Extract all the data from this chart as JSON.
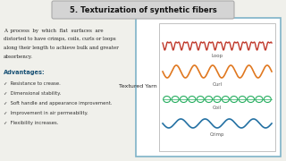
{
  "title": "5. Texturization of synthetic fibers",
  "title_bg": "#d4d4d4",
  "bg_color": "#f0f0eb",
  "body_text": "A  process  by  which  flat  surfaces  are\ndistorted to have crimps, coils, curls or loops\nalong their length to achieve bulk and greater\nabsorbency.",
  "advantages_title": "Advantages:",
  "advantages_color": "#1a5276",
  "advantages_items": [
    "Resistance to crease.",
    "Dimensional stability.",
    "Soft handle and appearance improvement.",
    "Improvement in air permeability.",
    "Flexibility increases."
  ],
  "textured_yarn_label": "Textured Yarn",
  "panel_bg": "#ffffff",
  "panel_border": "#7fb3c8",
  "loop_color": "#c0392b",
  "curl_color": "#e07820",
  "coil_color": "#27ae60",
  "crimp_color": "#2471a3",
  "labels": [
    "Loop",
    "Curl",
    "Coil",
    "Crimp"
  ],
  "label_color": "#555555",
  "check_color": "#333333",
  "text_color": "#222222"
}
